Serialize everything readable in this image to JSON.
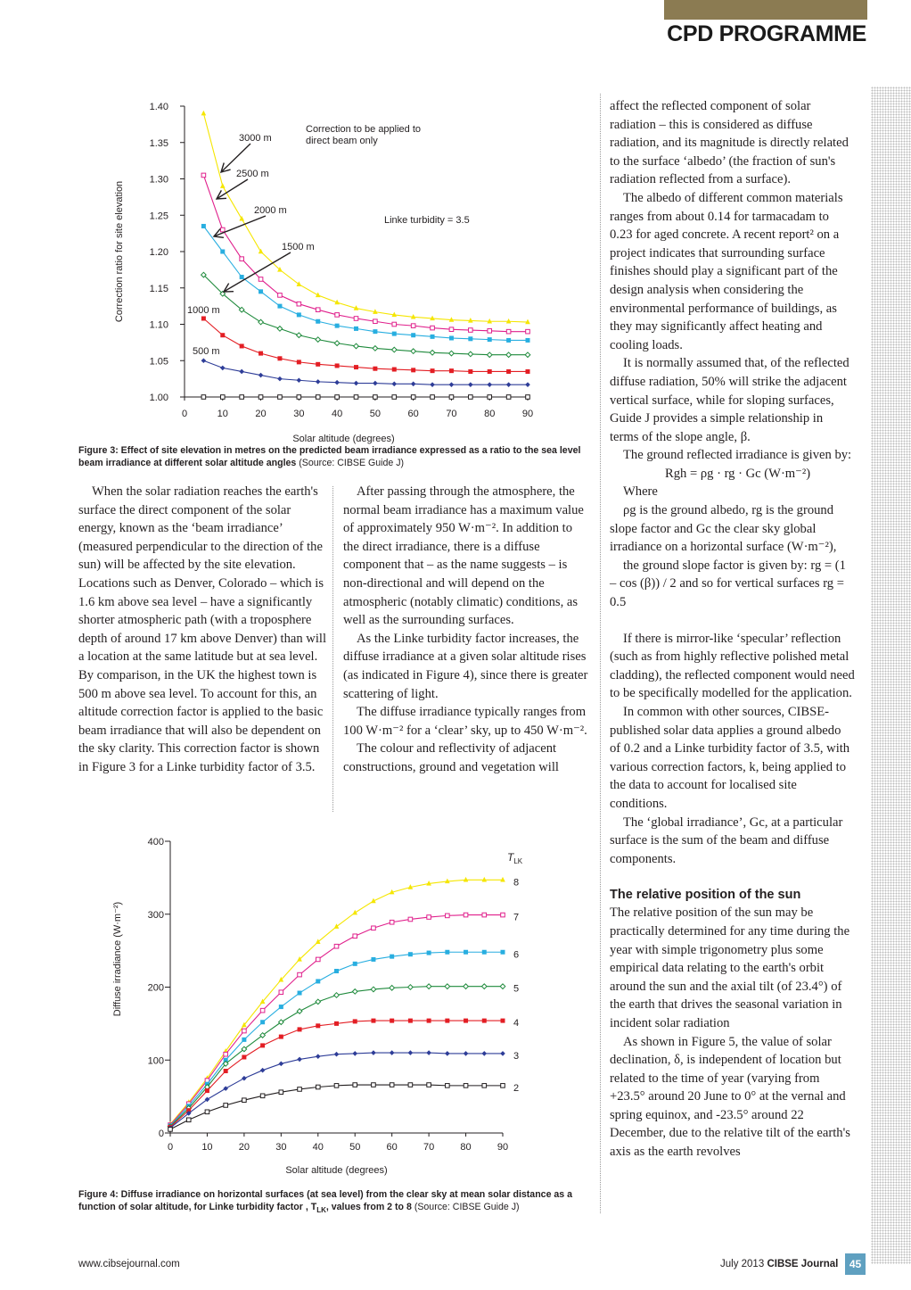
{
  "header": {
    "title": "CPD PROGRAMME"
  },
  "figure3": {
    "ylabel": "Correction ratio for site elevation",
    "xlabel": "Solar altitude (degrees)",
    "annotation_note": "Correction to be applied to direct beam only",
    "annotation_linke": "Linke turbidity = 3.5",
    "caption_bold": "Figure 3: Effect of site elevation in metres on the predicted beam irradiance expressed as a ratio to the sea level beam irradiance at different solar altitude angles",
    "caption_source": "(Source: CIBSE Guide J)",
    "chart_data": {
      "type": "line",
      "xlabel": "Solar altitude (degrees)",
      "ylabel": "Correction ratio for site elevation",
      "xlim": [
        0,
        90
      ],
      "ylim": [
        1.0,
        1.4
      ],
      "x_ticks": [
        "0",
        "10",
        "20",
        "30",
        "40",
        "50",
        "60",
        "70",
        "80",
        "90"
      ],
      "y_ticks": [
        "1.00",
        "1.05",
        "1.10",
        "1.15",
        "1.20",
        "1.25",
        "1.30",
        "1.35",
        "1.40"
      ],
      "x": [
        5,
        10,
        15,
        20,
        25,
        30,
        35,
        40,
        45,
        50,
        55,
        60,
        65,
        70,
        75,
        80,
        85,
        90
      ],
      "series": [
        {
          "name": "3000 m",
          "color": "#f5e600",
          "marker": "triangle",
          "values": [
            1.39,
            1.29,
            1.245,
            1.2,
            1.175,
            1.155,
            1.14,
            1.13,
            1.122,
            1.117,
            1.113,
            1.11,
            1.108,
            1.106,
            1.105,
            1.104,
            1.104,
            1.103
          ]
        },
        {
          "name": "2500 m",
          "color": "#e0208c",
          "marker": "square-open",
          "values": [
            1.305,
            1.23,
            1.19,
            1.162,
            1.14,
            1.128,
            1.12,
            1.113,
            1.108,
            1.104,
            1.1,
            1.098,
            1.095,
            1.093,
            1.092,
            1.091,
            1.09,
            1.09
          ]
        },
        {
          "name": "2000 m",
          "color": "#28aee0",
          "marker": "square",
          "values": [
            1.235,
            1.2,
            1.165,
            1.145,
            1.125,
            1.113,
            1.104,
            1.098,
            1.094,
            1.09,
            1.087,
            1.085,
            1.083,
            1.081,
            1.08,
            1.079,
            1.078,
            1.078
          ]
        },
        {
          "name": "1500 m",
          "color": "#1f8a3c",
          "marker": "diamond-open",
          "values": [
            1.168,
            1.142,
            1.12,
            1.103,
            1.094,
            1.085,
            1.079,
            1.074,
            1.07,
            1.067,
            1.065,
            1.063,
            1.061,
            1.06,
            1.059,
            1.058,
            1.058,
            1.058
          ]
        },
        {
          "name": "1000 m",
          "color": "#e31e24",
          "marker": "square",
          "values": [
            1.108,
            1.085,
            1.07,
            1.06,
            1.053,
            1.048,
            1.045,
            1.043,
            1.041,
            1.039,
            1.038,
            1.037,
            1.036,
            1.036,
            1.035,
            1.035,
            1.035,
            1.035
          ]
        },
        {
          "name": "500 m",
          "color": "#2e3d98",
          "marker": "diamond",
          "values": [
            1.05,
            1.04,
            1.035,
            1.03,
            1.025,
            1.023,
            1.021,
            1.02,
            1.019,
            1.019,
            1.018,
            1.018,
            1.017,
            1.017,
            1.017,
            1.017,
            1.017,
            1.017
          ]
        },
        {
          "name": "0 m",
          "color": "#231f20",
          "marker": "square-open",
          "values": [
            1.0,
            1.0,
            1.0,
            1.0,
            1.0,
            1.0,
            1.0,
            1.0,
            1.0,
            1.0,
            1.0,
            1.0,
            1.0,
            1.0,
            1.0,
            1.0,
            1.0,
            1.0
          ]
        }
      ]
    }
  },
  "figure4": {
    "ylabel": "Diffuse irradiance (W·m⁻²)",
    "xlabel": "Solar altitude (degrees)",
    "legend_title": "TLK",
    "caption_bold": "Figure 4: Diffuse irradiance on horizontal surfaces (at sea level) from the clear sky at mean solar distance as a function of solar altitude, for Linke turbidity factor , TLK, values from 2 to 8",
    "caption_source": "(Source: CIBSE Guide J)",
    "chart_data": {
      "type": "line",
      "xlabel": "Solar altitude (degrees)",
      "ylabel": "Diffuse irradiance (W·m⁻²)",
      "xlim": [
        0,
        90
      ],
      "ylim": [
        0,
        400
      ],
      "x_ticks": [
        "0",
        "10",
        "20",
        "30",
        "40",
        "50",
        "60",
        "70",
        "80",
        "90"
      ],
      "y_ticks": [
        "0",
        "100",
        "200",
        "300",
        "400"
      ],
      "x": [
        0,
        5,
        10,
        15,
        20,
        25,
        30,
        35,
        40,
        45,
        50,
        55,
        60,
        65,
        70,
        75,
        80,
        85,
        90
      ],
      "series": [
        {
          "name": "8",
          "color": "#f5e600",
          "marker": "triangle",
          "values": [
            12,
            42,
            75,
            112,
            148,
            180,
            210,
            238,
            262,
            283,
            302,
            318,
            330,
            337,
            342,
            345,
            347,
            347,
            347
          ]
        },
        {
          "name": "7",
          "color": "#e0208c",
          "marker": "square-open",
          "values": [
            11,
            40,
            72,
            108,
            140,
            168,
            193,
            217,
            238,
            256,
            270,
            281,
            289,
            293,
            296,
            298,
            299,
            299,
            299
          ]
        },
        {
          "name": "6",
          "color": "#28aee0",
          "marker": "square",
          "values": [
            10,
            37,
            67,
            100,
            128,
            152,
            173,
            192,
            208,
            222,
            232,
            238,
            242,
            245,
            247,
            248,
            248,
            248,
            248
          ]
        },
        {
          "name": "5",
          "color": "#1f8a3c",
          "marker": "diamond-open",
          "values": [
            9,
            34,
            63,
            95,
            115,
            134,
            152,
            167,
            180,
            189,
            194,
            197,
            199,
            200,
            201,
            201,
            201,
            201,
            201
          ]
        },
        {
          "name": "4",
          "color": "#e31e24",
          "marker": "square",
          "values": [
            8,
            31,
            58,
            85,
            104,
            120,
            132,
            142,
            147,
            150,
            153,
            154,
            154,
            154,
            154,
            154,
            154,
            154,
            154
          ]
        },
        {
          "name": "3",
          "color": "#2e3d98",
          "marker": "diamond",
          "values": [
            7,
            27,
            46,
            61,
            75,
            86,
            95,
            101,
            105,
            108,
            109,
            110,
            110,
            110,
            110,
            109,
            109,
            109,
            109
          ]
        },
        {
          "name": "2",
          "color": "#231f20",
          "marker": "square-open",
          "values": [
            5,
            18,
            29,
            38,
            45,
            51,
            56,
            60,
            63,
            65,
            66,
            66,
            66,
            66,
            66,
            65,
            65,
            65,
            65
          ]
        }
      ]
    }
  },
  "col1": [
    "When the solar radiation reaches the earth's surface the direct component of the solar energy, known as the ‘beam irradiance’ (measured perpendicular to the direction of the sun) will be affected by the site elevation. Locations such as Denver, Colorado – which is 1.6 km above sea level – have a significantly shorter atmospheric path (with a troposphere depth of around 17 km above Denver) than will a location at the same latitude but at sea level. By comparison, in the UK the highest town is 500 m above sea level. To account for this, an altitude correction factor is applied to the basic beam irradiance that will also be dependent on the sky clarity. This correction factor is shown in Figure 3 for a Linke turbidity factor of 3.5."
  ],
  "col2": [
    "After passing through the atmosphere, the normal beam irradiance has a maximum value of approximately 950 W·m⁻². In addition to the direct irradiance, there is a diffuse component that – as the name suggests – is non-directional and will depend on the atmospheric (notably climatic) conditions, as well as the surrounding surfaces.",
    "As the Linke turbidity factor increases, the diffuse irradiance at a given solar altitude rises (as indicated in Figure 4), since there is greater scattering of light.",
    "The diffuse irradiance typically ranges from 100 W·m⁻² for a ‘clear’ sky, up to 450 W·m⁻².",
    "The colour and reflectivity of adjacent constructions, ground and vegetation will"
  ],
  "col3": {
    "p1": "affect the reflected component of solar radiation – this is considered as diffuse radiation, and its magnitude is directly related to the surface ‘albedo’ (the fraction of sun's radiation reflected from a surface).",
    "p2": "The albedo of different common materials ranges from about 0.14 for tarmacadam to 0.23 for aged concrete. A recent report² on a project indicates that surrounding surface finishes should play a significant part of the design analysis when considering the environmental performance of buildings, as they may significantly affect heating and cooling loads.",
    "p3": "It is normally assumed that, of the reflected diffuse radiation, 50% will strike the adjacent vertical surface, while for sloping surfaces, Guide J provides a simple relationship in terms of the slope angle, β.",
    "p4": "The ground reflected irradiance is given by:",
    "formula": "Rgh = ρg · rg · Gc (W·m⁻²)",
    "where": "Where",
    "p5": "ρg is the ground albedo, rg is the ground slope factor and Gc the clear sky global irradiance on a horizontal surface (W·m⁻²),",
    "p6": "the ground slope factor is given by: rg = (1 – cos (β)) / 2  and so for vertical surfaces rg = 0.5",
    "p7": "If there is mirror-like ‘specular’ reflection (such as from highly reflective polished metal cladding), the reflected component would need to be specifically modelled for the application.",
    "p8": "In common with other sources, CIBSE-published solar data applies a ground albedo of 0.2 and a Linke turbidity factor of 3.5, with various correction factors, k, being applied to the data to account for localised site conditions.",
    "p9": "The ‘global irradiance’, Gc, at a particular surface is the sum of the beam and diffuse components.",
    "heading": "The relative position of the sun",
    "p10": "The relative position of the sun may be practically determined for any time during the year with simple trigonometry plus some empirical data relating to the earth's orbit around the sun and the axial tilt (of 23.4°) of the earth that drives the seasonal variation in incident solar radiation",
    "p11": "As shown in Figure 5, the value of solar declination, δ, is independent of location but related to the time of year (varying from +23.5° around 20 June to 0° at the vernal and spring equinox, and -23.5° around 22 December, due to the relative tilt of the earth's axis as the earth revolves"
  },
  "footer": {
    "url": "www.cibsejournal.com",
    "issue": "July 2013",
    "journal": "CIBSE Journal",
    "page": "45"
  }
}
